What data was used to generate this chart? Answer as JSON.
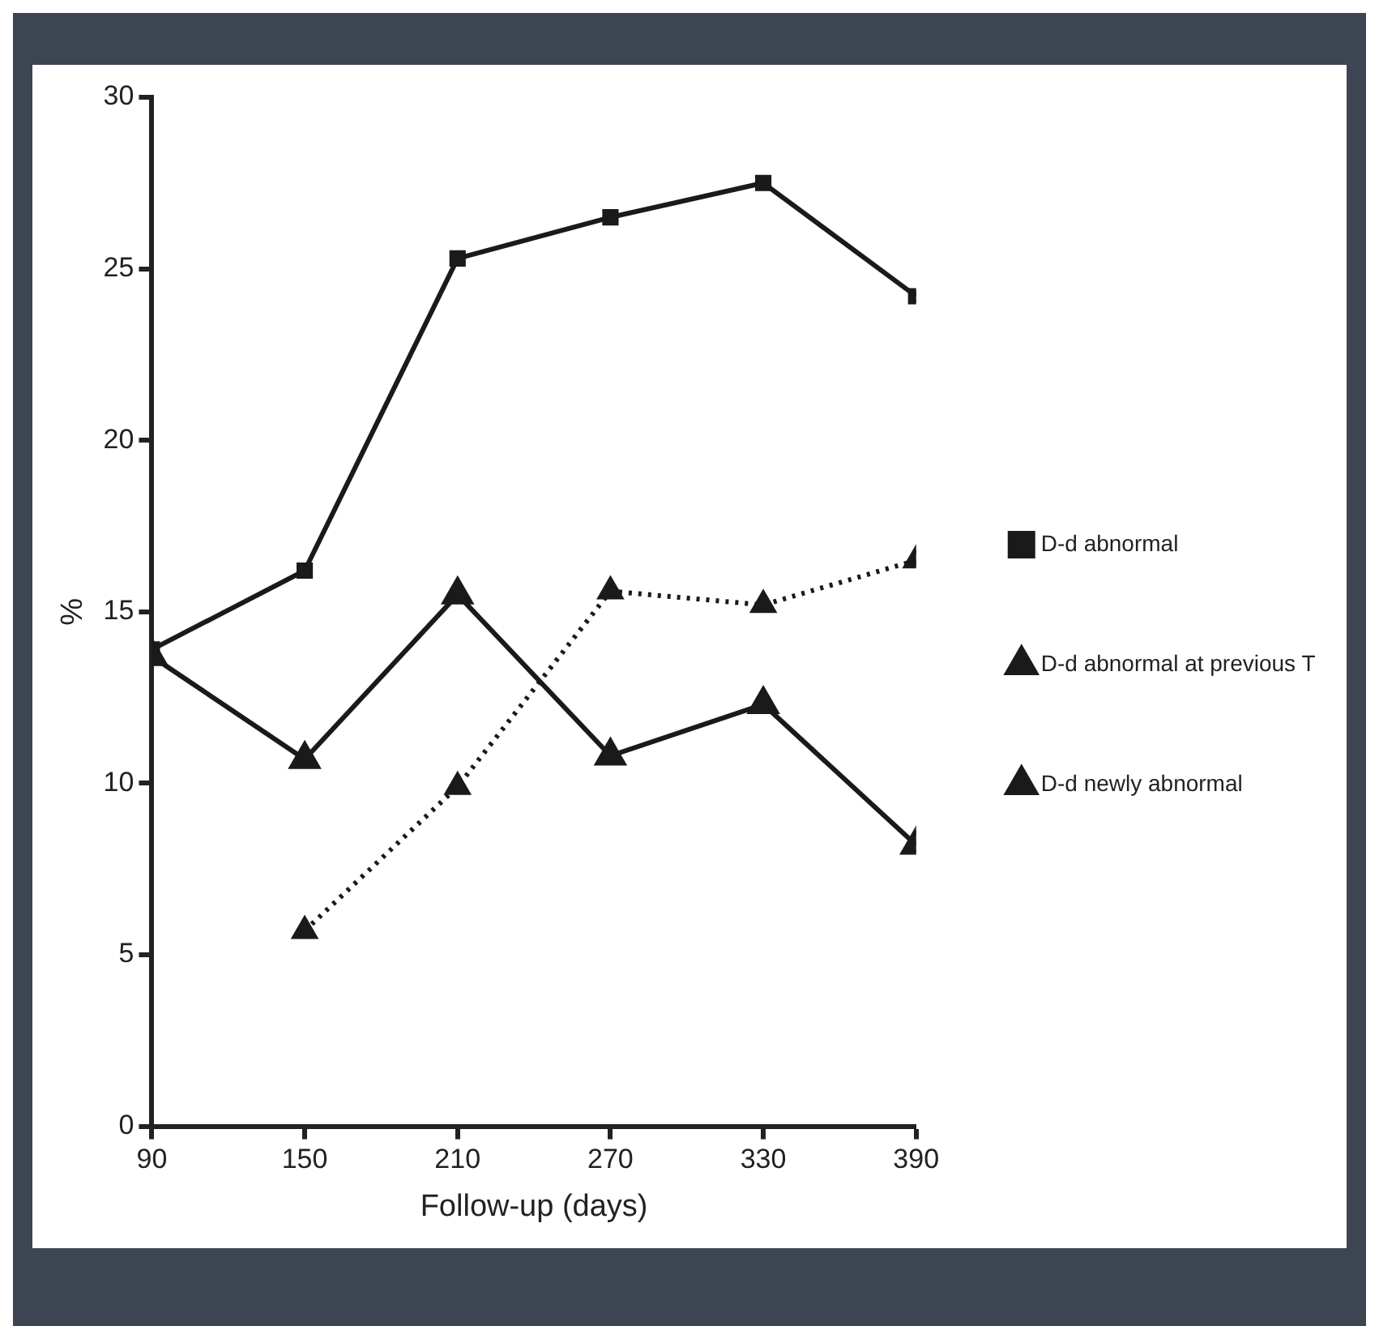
{
  "chart_data": {
    "type": "line",
    "xlabel": "Follow-up (days)",
    "ylabel": "%",
    "x": [
      90,
      150,
      210,
      270,
      330,
      390
    ],
    "xlim": [
      90,
      390
    ],
    "xticks": [
      90,
      150,
      210,
      270,
      330,
      390
    ],
    "ylim": [
      0,
      30
    ],
    "yticks": [
      0,
      5,
      10,
      15,
      20,
      25,
      30
    ],
    "grid": false,
    "legend": "right",
    "series": [
      {
        "name": "D-d abnormal",
        "color": "#1a1a1a",
        "marker": "square",
        "line_style": "solid",
        "values": [
          13.9,
          16.2,
          25.3,
          26.5,
          27.5,
          24.2
        ]
      },
      {
        "name": "D-d abnormal at previous T",
        "color": "#1a1a1a",
        "marker": "triangle",
        "line_style": "dotted",
        "values": [
          null,
          5.7,
          9.9,
          15.6,
          15.2,
          16.5
        ]
      },
      {
        "name": "D-d newly abnormal",
        "color": "#1a1a1a",
        "marker": "triangle",
        "line_style": "solid",
        "values": [
          13.7,
          10.7,
          15.5,
          10.8,
          12.3,
          8.2
        ]
      }
    ]
  }
}
